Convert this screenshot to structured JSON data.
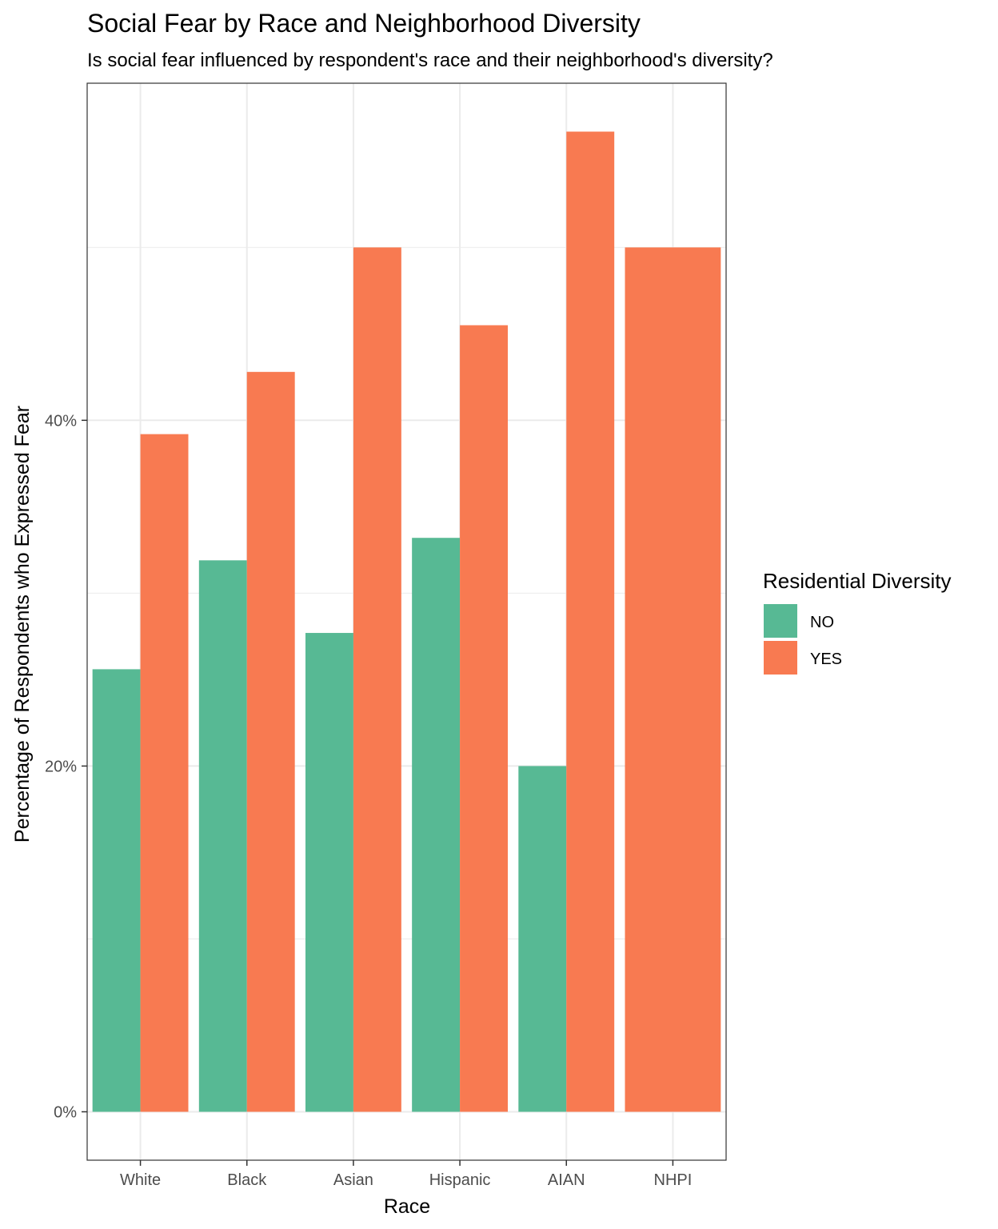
{
  "chart_data": {
    "type": "bar",
    "title": "Social Fear by Race and Neighborhood Diversity",
    "subtitle": "Is social fear influenced by respondent's race and their neighborhood's diversity?",
    "xlabel": "Race",
    "ylabel": "Percentage of Respondents who Expressed Fear",
    "categories": [
      "White",
      "Black",
      "Asian",
      "Hispanic",
      "AIAN",
      "NHPI"
    ],
    "series": [
      {
        "name": "NO",
        "color": "#57b994",
        "values": [
          25.6,
          31.9,
          27.7,
          33.2,
          20.0,
          null
        ]
      },
      {
        "name": "YES",
        "color": "#f87a51",
        "values": [
          39.2,
          42.8,
          50.0,
          45.5,
          56.7,
          50.0
        ]
      }
    ],
    "yticks": [
      0,
      20,
      40
    ],
    "ytick_labels": [
      "0%",
      "20%",
      "40%"
    ],
    "ylim": [
      -2.8,
      59.5
    ],
    "grid": true,
    "legend": {
      "title": "Residential Diversity",
      "entries": [
        "NO",
        "YES"
      ],
      "position": "right"
    }
  }
}
